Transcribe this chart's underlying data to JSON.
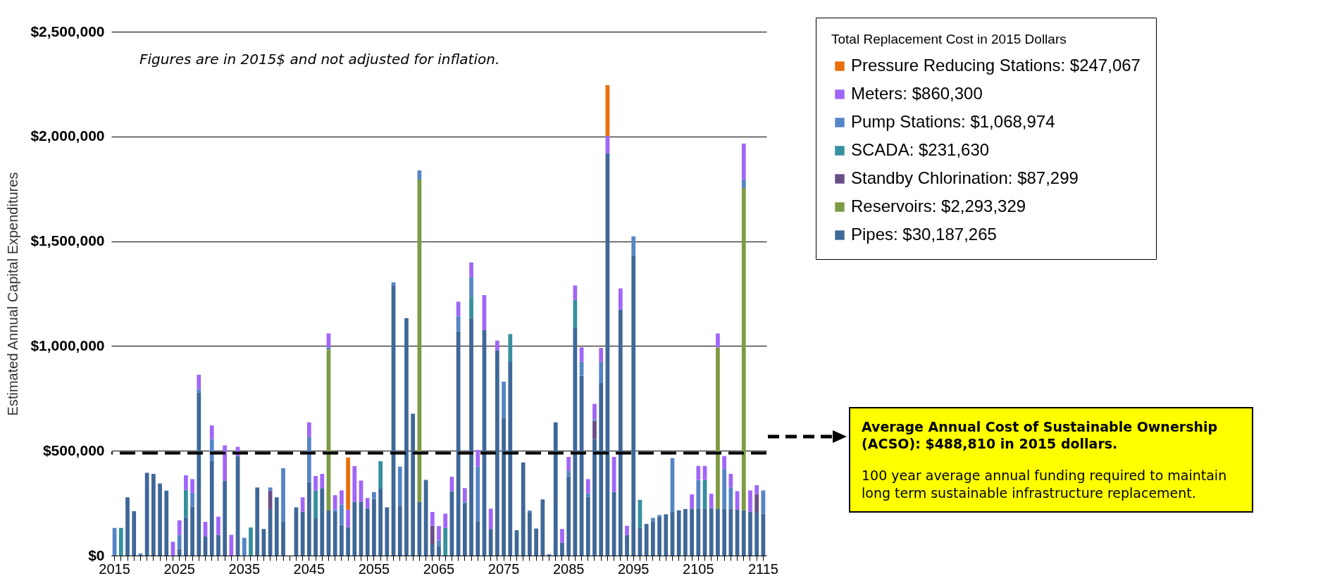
{
  "chart_data": {
    "type": "bar",
    "stacked": true,
    "ylabel": "Estimated Annual Capital Expenditures",
    "legend_title": "Total Replacement Cost in 2015 Dollars",
    "legend": "top right",
    "grid": "y",
    "categories": [
      "2015",
      null,
      null,
      null,
      null,
      null,
      null,
      null,
      null,
      null,
      "2025",
      null,
      null,
      null,
      null,
      null,
      null,
      null,
      null,
      null,
      "2035",
      null,
      null,
      null,
      null,
      null,
      null,
      null,
      null,
      null,
      "2045",
      null,
      null,
      null,
      null,
      null,
      null,
      null,
      null,
      null,
      "2055",
      null,
      null,
      null,
      null,
      null,
      null,
      null,
      null,
      null,
      "2065",
      null,
      null,
      null,
      null,
      null,
      null,
      null,
      null,
      null,
      "2075",
      null,
      null,
      null,
      null,
      null,
      null,
      null,
      null,
      null,
      "2085",
      null,
      null,
      null,
      null,
      null,
      null,
      null,
      null,
      null,
      "2095",
      null,
      null,
      null,
      null,
      null,
      null,
      null,
      null,
      null,
      "2105",
      null,
      null,
      null,
      null,
      null,
      null,
      null,
      null,
      null,
      "2115"
    ],
    "ylim": [
      0,
      2500000
    ],
    "yticks": [
      {
        "value": 0,
        "label": "$0"
      },
      {
        "value": 500000,
        "label": "$500,000"
      },
      {
        "value": 1000000,
        "label": "$1,000,000"
      },
      {
        "value": 1500000,
        "label": "$1,500,000"
      },
      {
        "value": 2000000,
        "label": "$2,000,000"
      },
      {
        "value": 2500000,
        "label": "$2,500,000"
      }
    ],
    "series": [
      {
        "name": "Pipes: $30,187,265",
        "color": "#3f6898",
        "values": [
          null,
          null,
          278000,
          212000,
          null,
          395000,
          390000,
          344000,
          310000,
          null,
          32000,
          183000,
          234000,
          779000,
          91000,
          453000,
          99000,
          358000,
          null,
          475000,
          null,
          null,
          325000,
          127000,
          222000,
          278000,
          161000,
          null,
          230000,
          209000,
          351000,
          178000,
          322000,
          215000,
          208000,
          146000,
          136000,
          256000,
          256000,
          227000,
          270000,
          319000,
          230000,
          1287000,
          238000,
          1133000,
          677000,
          256000,
          361000,
          54000,
          44000,
          null,
          307000,
          1070000,
          249000,
          1133000,
          164000,
          1075000,
          127000,
          980000,
          658000,
          924000,
          121000,
          444000,
          205000,
          129000,
          268000,
          null,
          636000,
          61000,
          377000,
          1086000,
          858000,
          281000,
          556000,
          823000,
          1920000,
          303000,
          1174000,
          98000,
          1433000,
          132000,
          151000,
          164000,
          186000,
          197000,
          208000,
          216000,
          222000,
          224000,
          227000,
          227000,
          227000,
          224000,
          224000,
          224000,
          219000,
          216000,
          209000,
          205000,
          200000
        ]
      },
      {
        "name": "Reservoirs: $2,293,329",
        "color": "#7e9a44",
        "values": [
          null,
          null,
          null,
          null,
          null,
          null,
          null,
          null,
          null,
          null,
          null,
          null,
          null,
          null,
          null,
          null,
          null,
          null,
          null,
          null,
          null,
          null,
          null,
          null,
          null,
          null,
          null,
          null,
          null,
          null,
          null,
          null,
          null,
          769000,
          null,
          null,
          null,
          null,
          null,
          null,
          null,
          null,
          null,
          null,
          null,
          null,
          null,
          1538000,
          null,
          null,
          null,
          null,
          null,
          null,
          null,
          null,
          null,
          null,
          null,
          null,
          null,
          null,
          null,
          null,
          null,
          null,
          null,
          null,
          null,
          null,
          null,
          null,
          null,
          null,
          null,
          null,
          null,
          null,
          null,
          null,
          null,
          null,
          null,
          null,
          null,
          null,
          null,
          null,
          null,
          null,
          null,
          null,
          null,
          770000,
          null,
          null,
          null,
          1538000,
          null,
          null,
          null
        ]
      },
      {
        "name": "Standby Chlorination: $87,299",
        "color": "#6a4e86",
        "values": [
          null,
          null,
          null,
          null,
          null,
          null,
          null,
          null,
          null,
          null,
          null,
          null,
          null,
          null,
          null,
          null,
          null,
          null,
          null,
          null,
          null,
          null,
          null,
          null,
          88000,
          null,
          null,
          null,
          null,
          null,
          null,
          null,
          null,
          null,
          null,
          null,
          null,
          null,
          null,
          null,
          null,
          null,
          null,
          null,
          null,
          null,
          null,
          null,
          null,
          88000,
          null,
          null,
          null,
          null,
          null,
          null,
          null,
          null,
          null,
          null,
          null,
          null,
          null,
          null,
          null,
          null,
          null,
          null,
          null,
          null,
          null,
          null,
          null,
          null,
          87000,
          null,
          null,
          null,
          null,
          null,
          null,
          null,
          null,
          null,
          null,
          null,
          null,
          null,
          null,
          null,
          null,
          null,
          null,
          null,
          null,
          null,
          null,
          null,
          null,
          87000,
          null
        ]
      },
      {
        "name": "SCADA: $231,630",
        "color": "#35909c",
        "values": [
          null,
          132000,
          null,
          null,
          null,
          null,
          null,
          null,
          null,
          null,
          null,
          131000,
          null,
          null,
          null,
          null,
          null,
          null,
          null,
          null,
          null,
          134000,
          null,
          null,
          null,
          null,
          null,
          null,
          null,
          null,
          null,
          132000,
          null,
          null,
          null,
          null,
          null,
          null,
          null,
          null,
          null,
          131000,
          null,
          null,
          null,
          null,
          null,
          null,
          null,
          null,
          null,
          132000,
          null,
          null,
          null,
          99000,
          null,
          null,
          null,
          null,
          null,
          133000,
          null,
          null,
          null,
          null,
          null,
          null,
          null,
          null,
          null,
          135000,
          null,
          null,
          null,
          null,
          null,
          null,
          null,
          null,
          null,
          134000,
          null,
          null,
          null,
          null,
          null,
          null,
          null,
          null,
          null,
          134000,
          null,
          null,
          null,
          null,
          null,
          null,
          null,
          null,
          null
        ]
      },
      {
        "name": "Pump Stations: $1,068,974",
        "color": "#5585c5",
        "values": [
          132000,
          null,
          null,
          null,
          10000,
          null,
          null,
          null,
          null,
          null,
          67000,
          null,
          66000,
          15000,
          null,
          103000,
          null,
          null,
          null,
          null,
          85000,
          null,
          null,
          null,
          15000,
          null,
          256000,
          null,
          null,
          null,
          216000,
          null,
          null,
          10000,
          11000,
          98000,
          null,
          null,
          null,
          null,
          33000,
          null,
          null,
          17000,
          186000,
          null,
          null,
          44000,
          null,
          null,
          28000,
          null,
          null,
          73000,
          7000,
          98000,
          260000,
          null,
          null,
          null,
          172000,
          null,
          null,
          null,
          10000,
          null,
          null,
          7000,
          null,
          null,
          28000,
          null,
          67000,
          16000,
          8000,
          102000,
          null,
          null,
          null,
          null,
          90000,
          null,
          null,
          16000,
          8000,
          null,
          257000,
          null,
          null,
          null,
          134000,
          null,
          null,
          null,
          190000,
          101000,
          null,
          41000,
          null,
          null,
          111000
        ]
      },
      {
        "name": "Meters: $860,300",
        "color": "#a066f7",
        "values": [
          null,
          null,
          null,
          null,
          null,
          null,
          null,
          null,
          null,
          66000,
          69000,
          69000,
          65000,
          69000,
          70000,
          65000,
          87000,
          168000,
          99000,
          44000,
          null,
          null,
          null,
          null,
          null,
          null,
          null,
          null,
          null,
          69000,
          69000,
          70000,
          68000,
          66000,
          69000,
          67000,
          83000,
          171000,
          102000,
          48000,
          null,
          null,
          null,
          null,
          null,
          null,
          null,
          null,
          null,
          66000,
          69000,
          68000,
          69000,
          68000,
          66000,
          69000,
          80000,
          168000,
          97000,
          46000,
          null,
          null,
          null,
          null,
          null,
          null,
          null,
          null,
          null,
          66000,
          66000,
          68000,
          69000,
          68000,
          73000,
          66000,
          83000,
          168000,
          101000,
          44000,
          null,
          null,
          null,
          null,
          null,
          null,
          null,
          null,
          null,
          68000,
          67000,
          67000,
          68000,
          66000,
          61000,
          65000,
          88000,
          171000,
          102000,
          44000,
          null
        ]
      },
      {
        "name": "Pressure Reducing Stations: $247,067",
        "color": "#e8700c",
        "values": [
          null,
          null,
          null,
          null,
          null,
          null,
          null,
          null,
          null,
          null,
          null,
          null,
          null,
          null,
          null,
          null,
          null,
          null,
          null,
          null,
          null,
          null,
          null,
          null,
          null,
          null,
          null,
          null,
          null,
          null,
          null,
          null,
          null,
          null,
          null,
          null,
          249000,
          null,
          null,
          null,
          null,
          null,
          null,
          null,
          null,
          null,
          null,
          null,
          null,
          null,
          null,
          null,
          null,
          null,
          null,
          null,
          null,
          null,
          null,
          null,
          null,
          null,
          null,
          null,
          null,
          null,
          null,
          null,
          null,
          null,
          null,
          null,
          null,
          null,
          null,
          null,
          242000,
          null,
          null,
          null,
          null,
          null,
          null,
          null,
          null,
          null,
          null,
          null,
          null,
          null,
          null,
          null,
          null,
          null,
          null,
          null,
          null,
          null,
          null,
          null,
          null
        ]
      }
    ],
    "ref_lines": [
      {
        "axis": "y",
        "value": 488810,
        "label": "Average Annual Cost of Sustainable Ownership (ACSO): $488,810 in 2015 dollars.",
        "color": "#000000",
        "line_style": "dashed"
      }
    ],
    "annotations": [
      "Figures are in 2015$ and not adjusted for inflation.",
      "100 year average annual funding required to maintain long term sustainable infrastructure replacement."
    ]
  }
}
